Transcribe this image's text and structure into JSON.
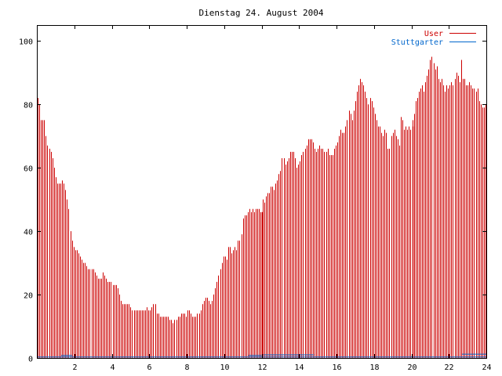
{
  "chart_data": {
    "type": "bar",
    "title": "Dienstag 24. August 2004",
    "xlabel": "",
    "ylabel": "",
    "xlim": [
      0,
      24
    ],
    "ylim": [
      0,
      105
    ],
    "grid": false,
    "legend_position": "top-right",
    "x_ticks": [
      "2",
      "4",
      "6",
      "8",
      "10",
      "12",
      "14",
      "16",
      "18",
      "20",
      "22",
      "24"
    ],
    "y_ticks": [
      "0",
      "20",
      "40",
      "60",
      "80",
      "100"
    ],
    "series": [
      {
        "name": "User",
        "color": "#cc0000",
        "values": [
          82,
          80,
          75,
          75,
          75,
          70,
          67,
          66,
          65,
          63,
          60,
          57,
          55,
          55,
          55,
          56,
          55,
          53,
          50,
          47,
          40,
          37,
          35,
          34,
          34,
          33,
          32,
          31,
          30,
          30,
          29,
          28,
          28,
          28,
          28,
          27,
          26,
          25,
          25,
          25,
          27,
          26,
          25,
          24,
          24,
          24,
          23,
          23,
          23,
          22,
          20,
          18,
          17,
          17,
          17,
          17,
          17,
          16,
          15,
          15,
          15,
          15,
          15,
          15,
          15,
          15,
          15,
          16,
          15,
          15,
          16,
          17,
          17,
          14,
          14,
          13,
          13,
          13,
          13,
          13,
          13,
          12,
          12,
          11,
          12,
          12,
          13,
          13,
          14,
          14,
          14,
          13,
          15,
          15,
          14,
          13,
          13,
          13,
          14,
          14,
          15,
          17,
          18,
          19,
          19,
          18,
          17,
          18,
          20,
          22,
          24,
          26,
          28,
          30,
          32,
          32,
          31,
          35,
          35,
          33,
          34,
          35,
          34,
          37,
          37,
          39,
          44,
          45,
          45,
          46,
          47,
          46,
          47,
          46,
          47,
          47,
          47,
          46,
          50,
          49,
          51,
          52,
          52,
          54,
          54,
          53,
          55,
          56,
          58,
          59,
          63,
          63,
          61,
          62,
          63,
          65,
          65,
          65,
          63,
          60,
          61,
          62,
          64,
          65,
          66,
          67,
          69,
          69,
          69,
          68,
          66,
          65,
          66,
          67,
          66,
          66,
          65,
          65,
          66,
          64,
          64,
          64,
          66,
          67,
          68,
          70,
          72,
          71,
          71,
          73,
          75,
          78,
          77,
          75,
          78,
          81,
          84,
          86,
          88,
          87,
          86,
          84,
          82,
          80,
          82,
          81,
          79,
          77,
          75,
          73,
          73,
          71,
          70,
          72,
          71,
          66,
          66,
          70,
          71,
          72,
          70,
          69,
          67,
          76,
          75,
          72,
          73,
          72,
          73,
          72,
          75,
          77,
          81,
          82,
          84,
          85,
          86,
          84,
          87,
          89,
          91,
          94,
          95,
          93,
          91,
          92,
          88,
          87,
          88,
          86,
          84,
          86,
          85,
          86,
          87,
          86,
          88,
          90,
          89,
          87,
          94,
          88,
          88,
          86,
          86,
          87,
          86,
          85,
          85,
          84,
          85,
          81,
          80,
          79,
          79,
          80
        ],
        "spikes": [
          {
            "x": 12,
            "value": 46
          },
          {
            "x": 20.05,
            "value": 73
          }
        ]
      },
      {
        "name": "Stuttgarter",
        "color": "#0066cc",
        "values": [],
        "segments": [
          {
            "x_start": 0.0,
            "x_end": 24.0,
            "value": 0.3
          },
          {
            "x_start": 1.3,
            "x_end": 1.9,
            "value": 0.8
          },
          {
            "x_start": 11.3,
            "x_end": 12.0,
            "value": 0.8
          },
          {
            "x_start": 12.1,
            "x_end": 14.8,
            "value": 1.0
          },
          {
            "x_start": 22.7,
            "x_end": 24.0,
            "value": 1.2
          }
        ]
      }
    ]
  }
}
